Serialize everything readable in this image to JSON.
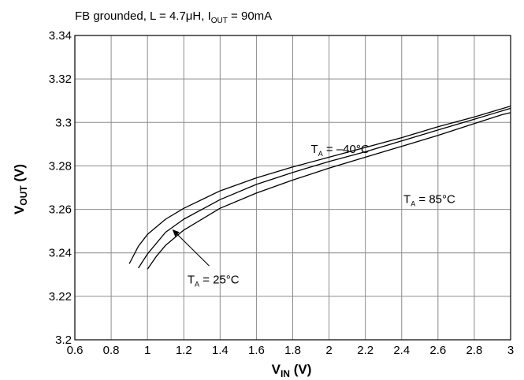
{
  "chart_data": {
    "type": "line",
    "conditions": {
      "prefix": "FB grounded,  L = 4.7μH,  I",
      "sub": "OUT",
      "suffix": " = 90mA"
    },
    "x_axis": {
      "main": "V",
      "sub": "IN",
      "unit": " (V)",
      "range": [
        0.6,
        3.0
      ],
      "ticks": [
        0.6,
        0.8,
        1.0,
        1.2,
        1.4,
        1.6,
        1.8,
        2.0,
        2.2,
        2.4,
        2.6,
        2.8,
        3.0
      ],
      "tick_labels": [
        "0.6",
        "0.8",
        "1",
        "1.2",
        "1.4",
        "1.6",
        "1.8",
        "2",
        "2.2",
        "2.4",
        "2.6",
        "2.8",
        "3"
      ]
    },
    "y_axis": {
      "main": "V",
      "sub": "OUT",
      "unit": " (V)",
      "range": [
        3.2,
        3.34
      ],
      "ticks": [
        3.2,
        3.22,
        3.24,
        3.26,
        3.28,
        3.3,
        3.32,
        3.34
      ],
      "tick_labels": [
        "3.2",
        "3.22",
        "3.24",
        "3.26",
        "3.28",
        "3.3",
        "3.32",
        "3.34"
      ]
    },
    "grid": true,
    "series": [
      {
        "name": "TA = –40°C",
        "x": [
          0.9,
          0.95,
          1.0,
          1.1,
          1.2,
          1.4,
          1.6,
          1.8,
          2.0,
          2.2,
          2.4,
          2.6,
          2.8,
          3.0
        ],
        "y": [
          3.235,
          3.243,
          3.2485,
          3.2555,
          3.2605,
          3.2685,
          3.2745,
          3.2795,
          3.284,
          3.2885,
          3.293,
          3.298,
          3.3025,
          3.3075
        ]
      },
      {
        "name": "TA = 25°C",
        "x": [
          0.95,
          1.0,
          1.1,
          1.2,
          1.4,
          1.6,
          1.8,
          2.0,
          2.2,
          2.4,
          2.6,
          2.8,
          3.0
        ],
        "y": [
          3.233,
          3.2395,
          3.2495,
          3.2555,
          3.2645,
          3.2715,
          3.277,
          3.282,
          3.2865,
          3.2915,
          3.2965,
          3.3015,
          3.3065
        ]
      },
      {
        "name": "TA = 85°C",
        "x": [
          1.0,
          1.05,
          1.1,
          1.2,
          1.4,
          1.6,
          1.8,
          2.0,
          2.2,
          2.4,
          2.6,
          2.8,
          2.95,
          3.0
        ],
        "y": [
          3.2325,
          3.2385,
          3.2435,
          3.2505,
          3.2605,
          3.2675,
          3.2735,
          3.279,
          3.284,
          3.289,
          3.294,
          3.2995,
          3.3035,
          3.3045
        ]
      }
    ],
    "annotations": [
      {
        "main": "T",
        "sub": "A",
        "text": " = –40°C",
        "x": 1.9,
        "y": 3.286
      },
      {
        "main": "T",
        "sub": "A",
        "text": " = 85°C",
        "x": 2.41,
        "y": 3.263
      },
      {
        "main": "T",
        "sub": "A",
        "text": " = 25°C",
        "x": 1.22,
        "y": 3.226,
        "arrow_from": [
          1.34,
          3.234
        ],
        "arrow_to": [
          1.14,
          3.2505
        ]
      }
    ]
  }
}
